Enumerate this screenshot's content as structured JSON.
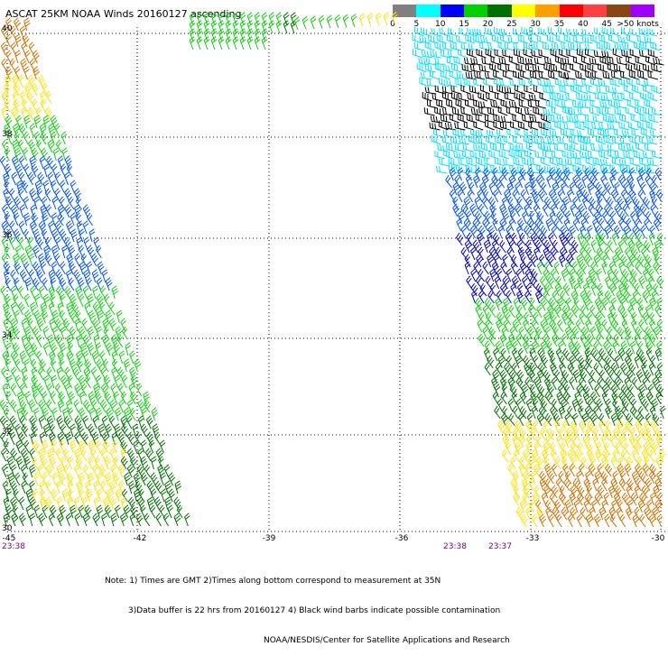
{
  "title": "ASCAT 25KM NOAA Winds 20160127 ascending",
  "legend": {
    "labels": [
      "0",
      "5",
      "10",
      "15",
      "20",
      "25",
      "30",
      "35",
      "40",
      "45",
      ">50 knots"
    ],
    "colors": [
      "#808080",
      "#00ffff",
      "#0000ff",
      "#00d000",
      "#007000",
      "#ffff00",
      "#ffa000",
      "#ff0000",
      "#ff4040",
      "#8b4513",
      "#a000ff"
    ]
  },
  "map": {
    "lat_labels": [
      "40",
      "38",
      "36",
      "34",
      "32",
      "30"
    ],
    "lon_labels": [
      "-45",
      "-42",
      "-39",
      "-36",
      "-33",
      "-30"
    ],
    "pass_times_bottom": [
      "23:38",
      "23:38",
      "23:37"
    ],
    "barb_colors": {
      "black": "#000000",
      "cyan": "#00e0ff",
      "blue": "#0050ff",
      "darkblue": "#0000c0",
      "green": "#10d010",
      "darkgreen": "#007000",
      "yellow": "#ffe000",
      "orange": "#d07000"
    }
  },
  "footnote": {
    "line1": "Note: 1) Times are GMT 2)Times along bottom correspond to measurement at 35N",
    "line2": "3)Data buffer is 22 hrs from 20160127 4) Black wind barbs indicate possible contamination",
    "line3": "NOAA/NESDIS/Center for Satellite Applications and Research"
  }
}
